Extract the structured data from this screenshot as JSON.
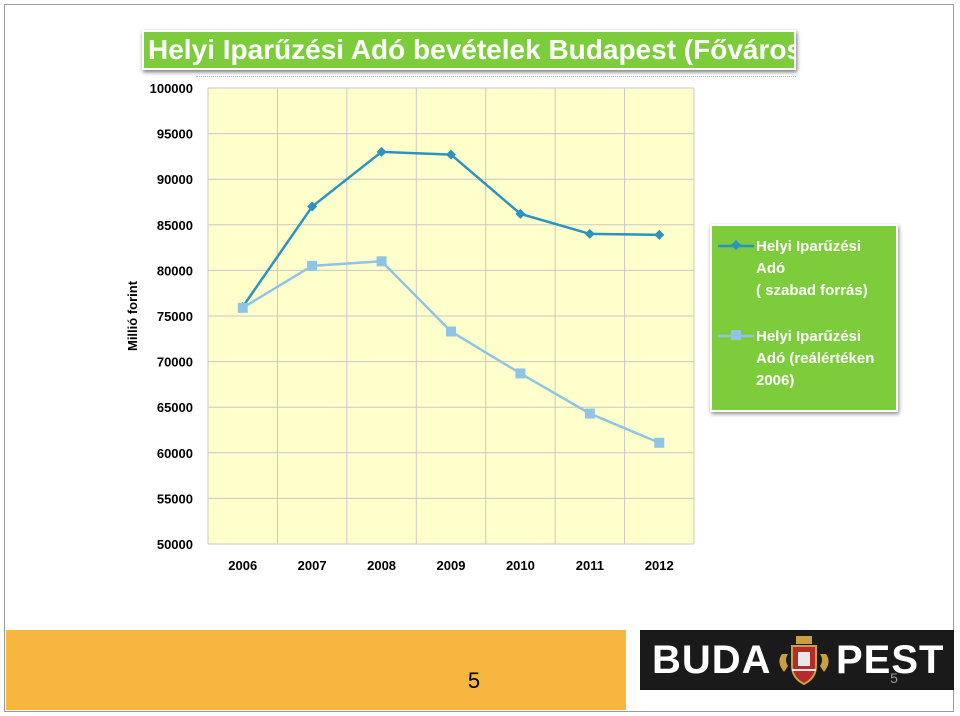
{
  "slide": {
    "title": "Helyi Iparűzési Adó bevételek Budapest (Főváros)",
    "page_number": "5",
    "logo": {
      "text_left": "BUDA",
      "text_right": "PEST"
    },
    "colors": {
      "title_bg": "#7ccc3c",
      "legend_bg": "#7ccc3c",
      "plot_bg": "#ffffcc",
      "footer_bar": "#f6b63f",
      "logo_bg": "#1a1a1a"
    }
  },
  "chart_data": {
    "type": "line",
    "title": "",
    "xlabel": "",
    "ylabel": "Millió forint",
    "x": [
      "2006",
      "2007",
      "2008",
      "2009",
      "2010",
      "2011",
      "2012"
    ],
    "ylim": [
      50000,
      100000
    ],
    "yticks": [
      "100000",
      "95000",
      "90000",
      "85000",
      "80000",
      "75000",
      "70000",
      "65000",
      "60000",
      "55000",
      "50000"
    ],
    "grid": true,
    "legend_position": "right",
    "series": [
      {
        "name": "Helyi Iparűzési Adó ( szabad forrás)",
        "name_lines": [
          "Helyi Iparűzési",
          "Adó",
          "( szabad forrás)"
        ],
        "marker": "diamond",
        "color": "#2a93c0",
        "values": [
          76000,
          87000,
          93000,
          92700,
          86200,
          84000,
          83900
        ]
      },
      {
        "name": "Helyi Iparűzési Adó (reálértéken 2006)",
        "name_lines": [
          "Helyi Iparűzési",
          "Adó (reálértéken",
          "2006)"
        ],
        "marker": "square",
        "color": "#8fc4e4",
        "values": [
          75900,
          80500,
          81000,
          73300,
          68700,
          64300,
          61100
        ]
      }
    ]
  }
}
